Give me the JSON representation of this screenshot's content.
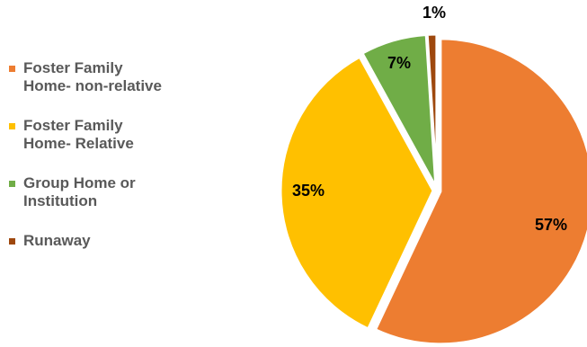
{
  "chart_data": {
    "type": "pie",
    "categories": [
      "Foster Family\nHome- non-relative",
      "Foster Family\nHome- Relative",
      "Group Home or\nInstitution",
      "Runaway"
    ],
    "values": [
      57,
      35,
      7,
      1
    ],
    "labels": [
      "57%",
      "35%",
      "7%",
      "1%"
    ],
    "colors": [
      "#ED7D31",
      "#FFC000",
      "#70AD47",
      "#9E480E"
    ],
    "legend_position": "left"
  }
}
